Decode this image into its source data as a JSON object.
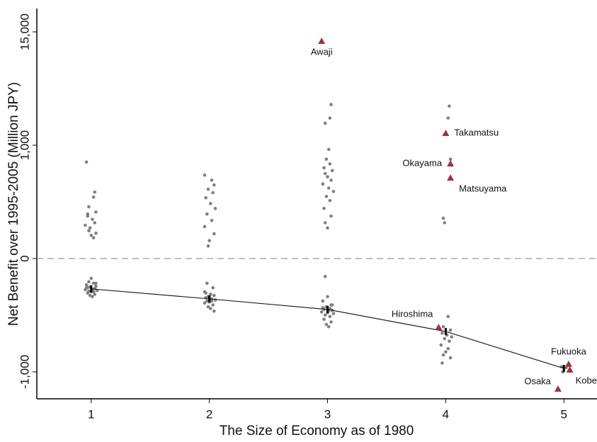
{
  "chart_data": {
    "type": "scatter",
    "y_label": "Net Benefit over 1995-2005 (Million JPY)",
    "x_label": "The Size of Economy as of 1980",
    "yscale": "symlog",
    "ylinthresh": 77,
    "ylim": [
      -1940,
      25900
    ],
    "yticks": [
      {
        "value": -1000,
        "label": "-1,000"
      },
      0,
      {
        "value": 1000,
        "label": "1,000"
      },
      {
        "value": 15000,
        "label": "15,000"
      }
    ],
    "xlim": [
      0.54,
      5.28
    ],
    "xticks": [
      1,
      2,
      3,
      4,
      5
    ],
    "zero_line": true,
    "points": {
      "color": "#808080",
      "x": [
        0.96,
        1.03,
        1.02,
        0.98,
        1.04,
        0.97,
        1.01,
        0.95,
        0.99,
        1.04,
        1.02,
        0.97,
        1.03,
        0.98,
        1.0,
        1.0,
        0.98,
        1.02,
        0.96,
        1.04,
        0.99,
        0.97,
        1.03,
        1.01,
        0.95,
        1.05,
        0.98,
        1.02,
        0.97,
        1.03,
        0.99,
        1.01,
        1.04,
        0.96,
        1.0,
        1.96,
        2.02,
        2.04,
        1.99,
        2.03,
        1.97,
        2.01,
        2.05,
        1.98,
        2.02,
        1.96,
        2.04,
        2.0,
        1.99,
        1.98,
        2.03,
        1.96,
        2.01,
        2.04,
        1.99,
        1.97,
        2.02,
        2.05,
        1.98,
        2.0,
        1.96,
        2.03,
        1.99,
        2.01,
        2.04,
        1.97,
        2.0,
        2.02,
        3.03,
        3.02,
        2.98,
        3.01,
        2.99,
        3.02,
        2.97,
        3.04,
        2.98,
        3.0,
        3.03,
        2.96,
        3.01,
        3.05,
        2.99,
        3.02,
        2.97,
        3.03,
        2.98,
        3.0,
        2.98,
        3.0,
        2.96,
        3.03,
        2.99,
        3.02,
        2.97,
        3.04,
        3.01,
        2.95,
        3.05,
        2.98,
        3.02,
        2.97,
        3.03,
        2.99,
        3.01,
        3.04,
        2.96,
        3.0,
        4.03,
        4.02,
        4.04,
        4.05,
        3.98,
        3.99,
        4.02,
        3.98,
        4.04,
        3.97,
        4.01,
        4.05,
        3.99,
        4.03,
        3.96,
        4.02,
        4.0,
        3.98,
        4.04,
        3.97,
        4.98,
        5.02,
        4.99
      ],
      "y": [
        650,
        285,
        245,
        180,
        150,
        130,
        115,
        90,
        80,
        62,
        48,
        140,
        100,
        70,
        55,
        -45,
        -55,
        -60,
        -65,
        -70,
        -72,
        -75,
        -78,
        -80,
        -82,
        -85,
        -88,
        -90,
        -95,
        -100,
        -105,
        -110,
        -60,
        -75,
        -90,
        460,
        400,
        350,
        310,
        280,
        240,
        200,
        170,
        140,
        110,
        85,
        60,
        40,
        26,
        -60,
        -75,
        -90,
        -100,
        -105,
        -110,
        -115,
        -120,
        -125,
        -130,
        -135,
        -140,
        -150,
        -160,
        -170,
        -185,
        -95,
        -115,
        -130,
        2700,
        1950,
        1720,
        900,
        700,
        620,
        560,
        520,
        480,
        440,
        400,
        360,
        320,
        290,
        250,
        220,
        170,
        130,
        100,
        80,
        -40,
        -110,
        -130,
        -150,
        -160,
        -170,
        -175,
        -180,
        -185,
        -190,
        -200,
        -210,
        -220,
        -240,
        -260,
        -280,
        -300,
        -150,
        -165,
        -195,
        2600,
        1950,
        700,
        600,
        120,
        100,
        -220,
        -300,
        -330,
        -360,
        -380,
        -400,
        -420,
        -450,
        -500,
        -550,
        -600,
        -650,
        -700,
        -800,
        -880,
        -900,
        -1000
      ]
    },
    "labeled_points": {
      "color": "#a0353a",
      "labels": [
        "Awaji",
        "Takamatsu",
        "Okayama",
        "Matsuyama",
        "Hiroshima",
        "Fukuoka",
        "Kobe",
        "Osaka"
      ],
      "x": [
        2.95,
        4.0,
        4.04,
        4.04,
        3.94,
        5.04,
        5.05,
        4.95
      ],
      "y": [
        12100,
        1350,
        625,
        427,
        -304,
        -822,
        -948,
        -1525
      ]
    },
    "line": {
      "color": "#222222",
      "x": [
        1,
        2,
        3,
        4,
        5
      ],
      "y": [
        -79,
        -120,
        -175,
        -344,
        -917
      ]
    }
  }
}
